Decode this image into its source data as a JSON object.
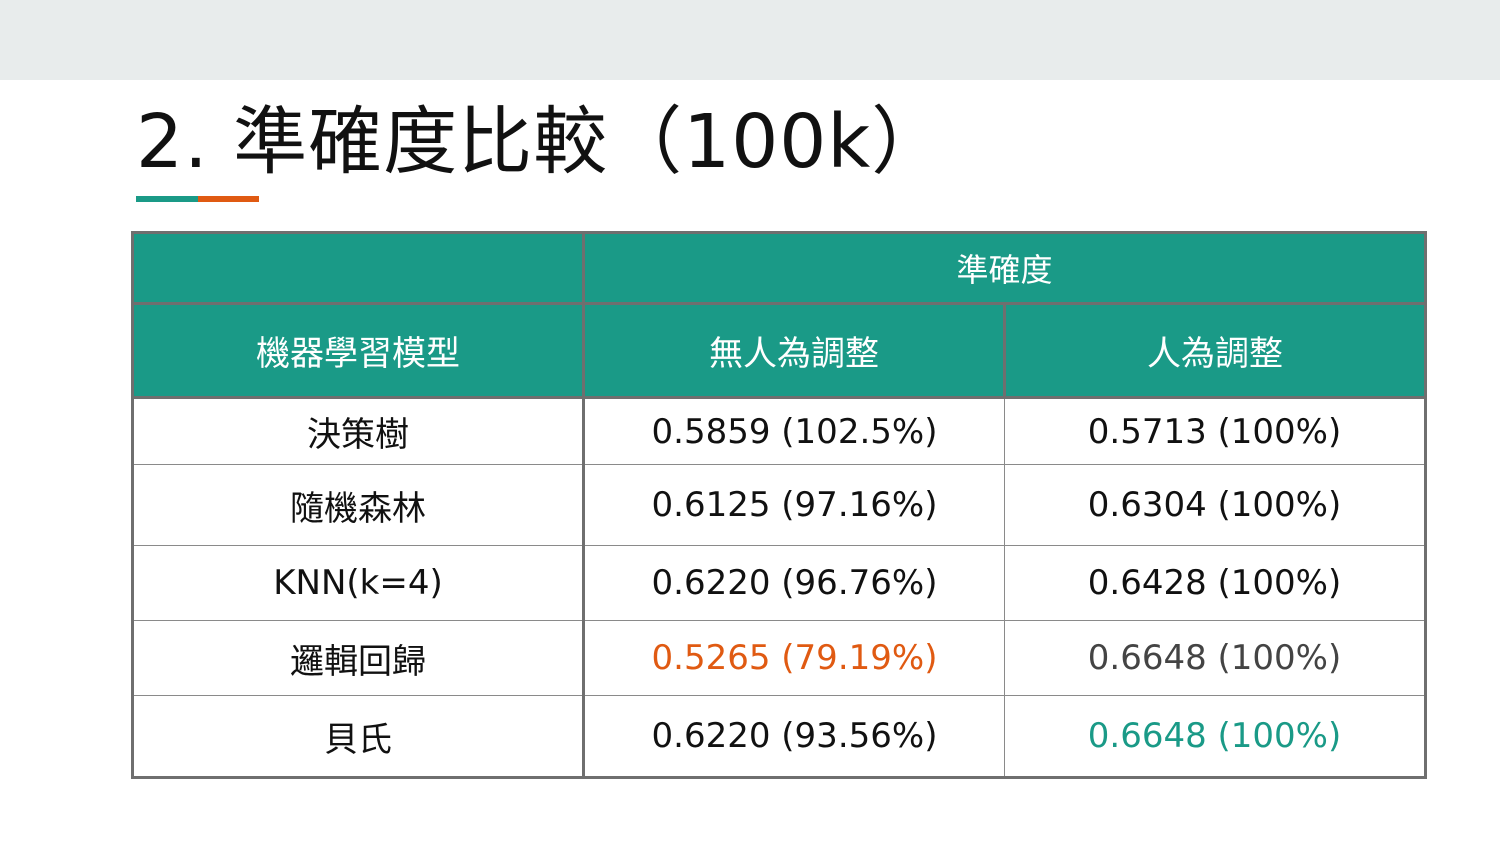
{
  "theme": {
    "accent_teal": "#1a9a87",
    "accent_orange": "#e05a12",
    "header_fill": "#1a9a87",
    "gray_text": "#444444"
  },
  "slide": {
    "title": "2. 準確度比較（100k）"
  },
  "table": {
    "group_header": "準確度",
    "columns": [
      "機器學習模型",
      "無人為調整",
      "人為調整"
    ],
    "rows": [
      {
        "model": "決策樹",
        "no_adjust": "0.5859 (102.5%)",
        "adjust": "0.5713 (100%)",
        "no_adjust_color": "",
        "adjust_color": ""
      },
      {
        "model": "隨機森林",
        "no_adjust": "0.6125 (97.16%)",
        "adjust": "0.6304 (100%)",
        "no_adjust_color": "",
        "adjust_color": ""
      },
      {
        "model": "KNN(k=4)",
        "no_adjust": "0.6220 (96.76%)",
        "adjust": "0.6428 (100%)",
        "no_adjust_color": "",
        "adjust_color": ""
      },
      {
        "model": "邏輯回歸",
        "no_adjust": "0.5265 (79.19%)",
        "adjust": "0.6648 (100%)",
        "no_adjust_color": "#e05a12",
        "adjust_color": "#444444"
      },
      {
        "model": "貝氏",
        "no_adjust": "0.6220 (93.56%)",
        "adjust": "0.6648 (100%)",
        "no_adjust_color": "",
        "adjust_color": "#1a9a87"
      }
    ]
  }
}
